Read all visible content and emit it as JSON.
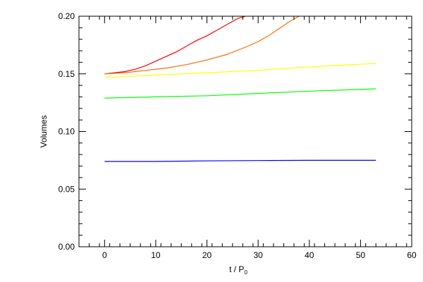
{
  "chart_data": {
    "type": "line",
    "title": "",
    "xlabel": "t / P",
    "xlabel_subscript": "0",
    "ylabel": "Volumes",
    "xlim": [
      -5,
      60
    ],
    "ylim": [
      0.0,
      0.2
    ],
    "x_ticks": [
      0,
      10,
      20,
      30,
      40,
      50,
      60
    ],
    "x_tick_labels": [
      "0",
      "10",
      "20",
      "30",
      "40",
      "50",
      "60"
    ],
    "y_ticks": [
      0.0,
      0.05,
      0.1,
      0.15,
      0.2
    ],
    "y_tick_labels": [
      "0.00",
      "0.05",
      "0.10",
      "0.15",
      "0.20"
    ],
    "grid": false,
    "legend": "none",
    "series": [
      {
        "color": "#ff0000",
        "x": [
          0,
          2,
          4,
          6,
          8,
          10,
          12,
          14,
          16,
          18,
          20,
          22,
          24,
          26,
          27.5
        ],
        "y": [
          0.15,
          0.151,
          0.152,
          0.154,
          0.157,
          0.161,
          0.165,
          0.169,
          0.174,
          0.179,
          0.183,
          0.188,
          0.193,
          0.198,
          0.2
        ]
      },
      {
        "color": "#ff6a00",
        "x": [
          0,
          4,
          8,
          12,
          16,
          20,
          24,
          28,
          30,
          32,
          34,
          36,
          38
        ],
        "y": [
          0.15,
          0.151,
          0.153,
          0.155,
          0.158,
          0.162,
          0.167,
          0.174,
          0.178,
          0.183,
          0.189,
          0.195,
          0.2
        ]
      },
      {
        "color": "#ffff00",
        "x": [
          0,
          10,
          20,
          30,
          40,
          53
        ],
        "y": [
          0.147,
          0.149,
          0.151,
          0.153,
          0.156,
          0.159
        ]
      },
      {
        "color": "#00ff00",
        "x": [
          0,
          10,
          20,
          30,
          40,
          53
        ],
        "y": [
          0.129,
          0.13,
          0.131,
          0.133,
          0.135,
          0.137
        ]
      },
      {
        "color": "#0000ff",
        "x": [
          0,
          10,
          20,
          30,
          40,
          53
        ],
        "y": [
          0.074,
          0.074,
          0.0745,
          0.0748,
          0.075,
          0.075
        ]
      }
    ]
  }
}
